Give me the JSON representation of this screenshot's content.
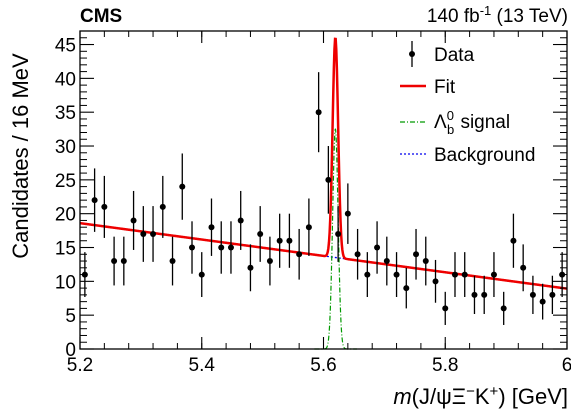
{
  "chart_data": {
    "type": "scatter",
    "experiment_label": "CMS",
    "lumi_label": {
      "value": "140 fb",
      "sup": "-1",
      "energy": "(13 TeV)"
    },
    "xlabel": {
      "prefix": "m",
      "body": "(J/ψΞ",
      "minus": "−",
      "k": "K",
      "plus": "+",
      "suffix": ") [GeV]"
    },
    "ylabel": "Candidates / 16 MeV",
    "xlim": [
      5.2,
      6.0
    ],
    "ylim": [
      0,
      47
    ],
    "x_ticks": [
      5.2,
      5.4,
      5.6,
      5.8,
      6.0
    ],
    "x_tick_labels": [
      "5.2",
      "5.4",
      "5.6",
      "5.8",
      "6"
    ],
    "y_ticks": [
      0,
      5,
      10,
      15,
      20,
      25,
      30,
      35,
      40,
      45
    ],
    "y_tick_labels": [
      "0",
      "5",
      "10",
      "15",
      "20",
      "25",
      "30",
      "35",
      "40",
      "45"
    ],
    "legend": {
      "placement": "top-right",
      "entries": [
        {
          "key": "data",
          "label": "Data"
        },
        {
          "key": "fit",
          "label": "Fit"
        },
        {
          "key": "signal",
          "label_prefix": "Λ",
          "label_sup": "0",
          "label_sub": "b",
          "label_suffix": " signal"
        },
        {
          "key": "background",
          "label": "Background"
        }
      ]
    },
    "series": [
      {
        "name": "Data",
        "style": "points-with-errors",
        "color": "#000000",
        "x": [
          5.208,
          5.224,
          5.24,
          5.256,
          5.272,
          5.288,
          5.304,
          5.32,
          5.336,
          5.352,
          5.368,
          5.384,
          5.4,
          5.416,
          5.432,
          5.448,
          5.464,
          5.48,
          5.496,
          5.512,
          5.528,
          5.544,
          5.56,
          5.576,
          5.592,
          5.608,
          5.624,
          5.64,
          5.656,
          5.672,
          5.688,
          5.704,
          5.72,
          5.736,
          5.752,
          5.768,
          5.784,
          5.8,
          5.816,
          5.832,
          5.848,
          5.864,
          5.88,
          5.896,
          5.912,
          5.928,
          5.944,
          5.96,
          5.976,
          5.992
        ],
        "y": [
          11,
          22,
          21,
          13,
          13,
          19,
          17,
          17,
          21,
          13,
          24,
          15,
          11,
          18,
          15,
          15,
          19,
          12,
          17,
          13,
          16,
          16,
          14,
          18,
          35,
          25,
          17,
          20,
          14,
          11,
          15,
          13,
          11,
          9,
          14,
          13,
          10,
          6,
          11,
          11,
          8,
          8,
          11,
          6,
          16,
          12,
          8,
          7,
          8,
          11
        ]
      },
      {
        "name": "Fit",
        "style": "line",
        "color": "#ee0000"
      },
      {
        "name": "Λb0 signal",
        "style": "dash-dot",
        "color": "#009900"
      },
      {
        "name": "Background",
        "style": "dotted",
        "color": "#0000ee"
      }
    ],
    "model": {
      "background": {
        "at_x_min": 18.6,
        "slope_per_gev": -12.1
      },
      "signal": {
        "mean": 5.6195,
        "sigma": 0.0045,
        "peak": 32.5
      }
    }
  }
}
